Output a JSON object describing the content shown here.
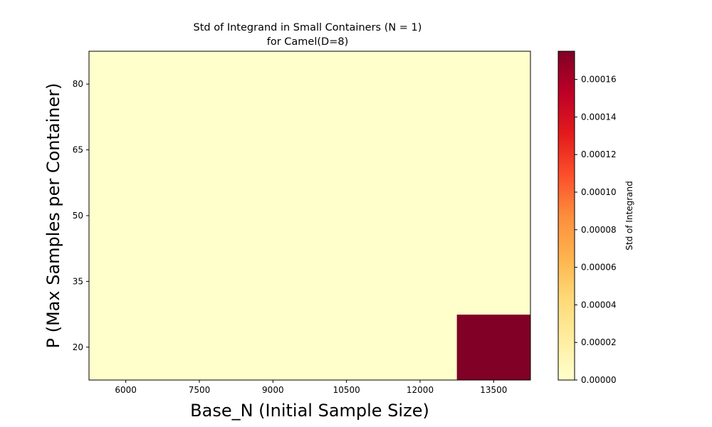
{
  "chart_data": {
    "type": "heatmap",
    "title": "Std of Integrand in Small Containers (N = 1)",
    "subtitle": "for Camel(D=8)",
    "xlabel": "Base_N (Initial Sample Size)",
    "ylabel": "P (Max Samples per Container)",
    "x_categories": [
      "6000",
      "7500",
      "9000",
      "10500",
      "12000",
      "13500"
    ],
    "y_categories": [
      "20",
      "35",
      "50",
      "65",
      "80"
    ],
    "values": [
      [
        0,
        0,
        0,
        0,
        0,
        0.000175
      ],
      [
        0,
        0,
        0,
        0,
        0,
        0
      ],
      [
        0,
        0,
        0,
        0,
        0,
        0
      ],
      [
        0,
        0,
        0,
        0,
        0,
        0
      ],
      [
        0,
        0,
        0,
        0,
        0,
        0
      ]
    ],
    "colorbar": {
      "label": "Std of Integrand",
      "colormap": "YlOrRd",
      "range": [
        0,
        0.000175
      ],
      "ticks": [
        "0.00000",
        "0.00002",
        "0.00004",
        "0.00006",
        "0.00008",
        "0.00010",
        "0.00012",
        "0.00014",
        "0.00016"
      ],
      "stops": [
        "#ffffcc",
        "#ffeda0",
        "#fed976",
        "#feb24c",
        "#fd8d3c",
        "#fc4e2a",
        "#e31a1c",
        "#bd0026",
        "#800026"
      ]
    }
  }
}
